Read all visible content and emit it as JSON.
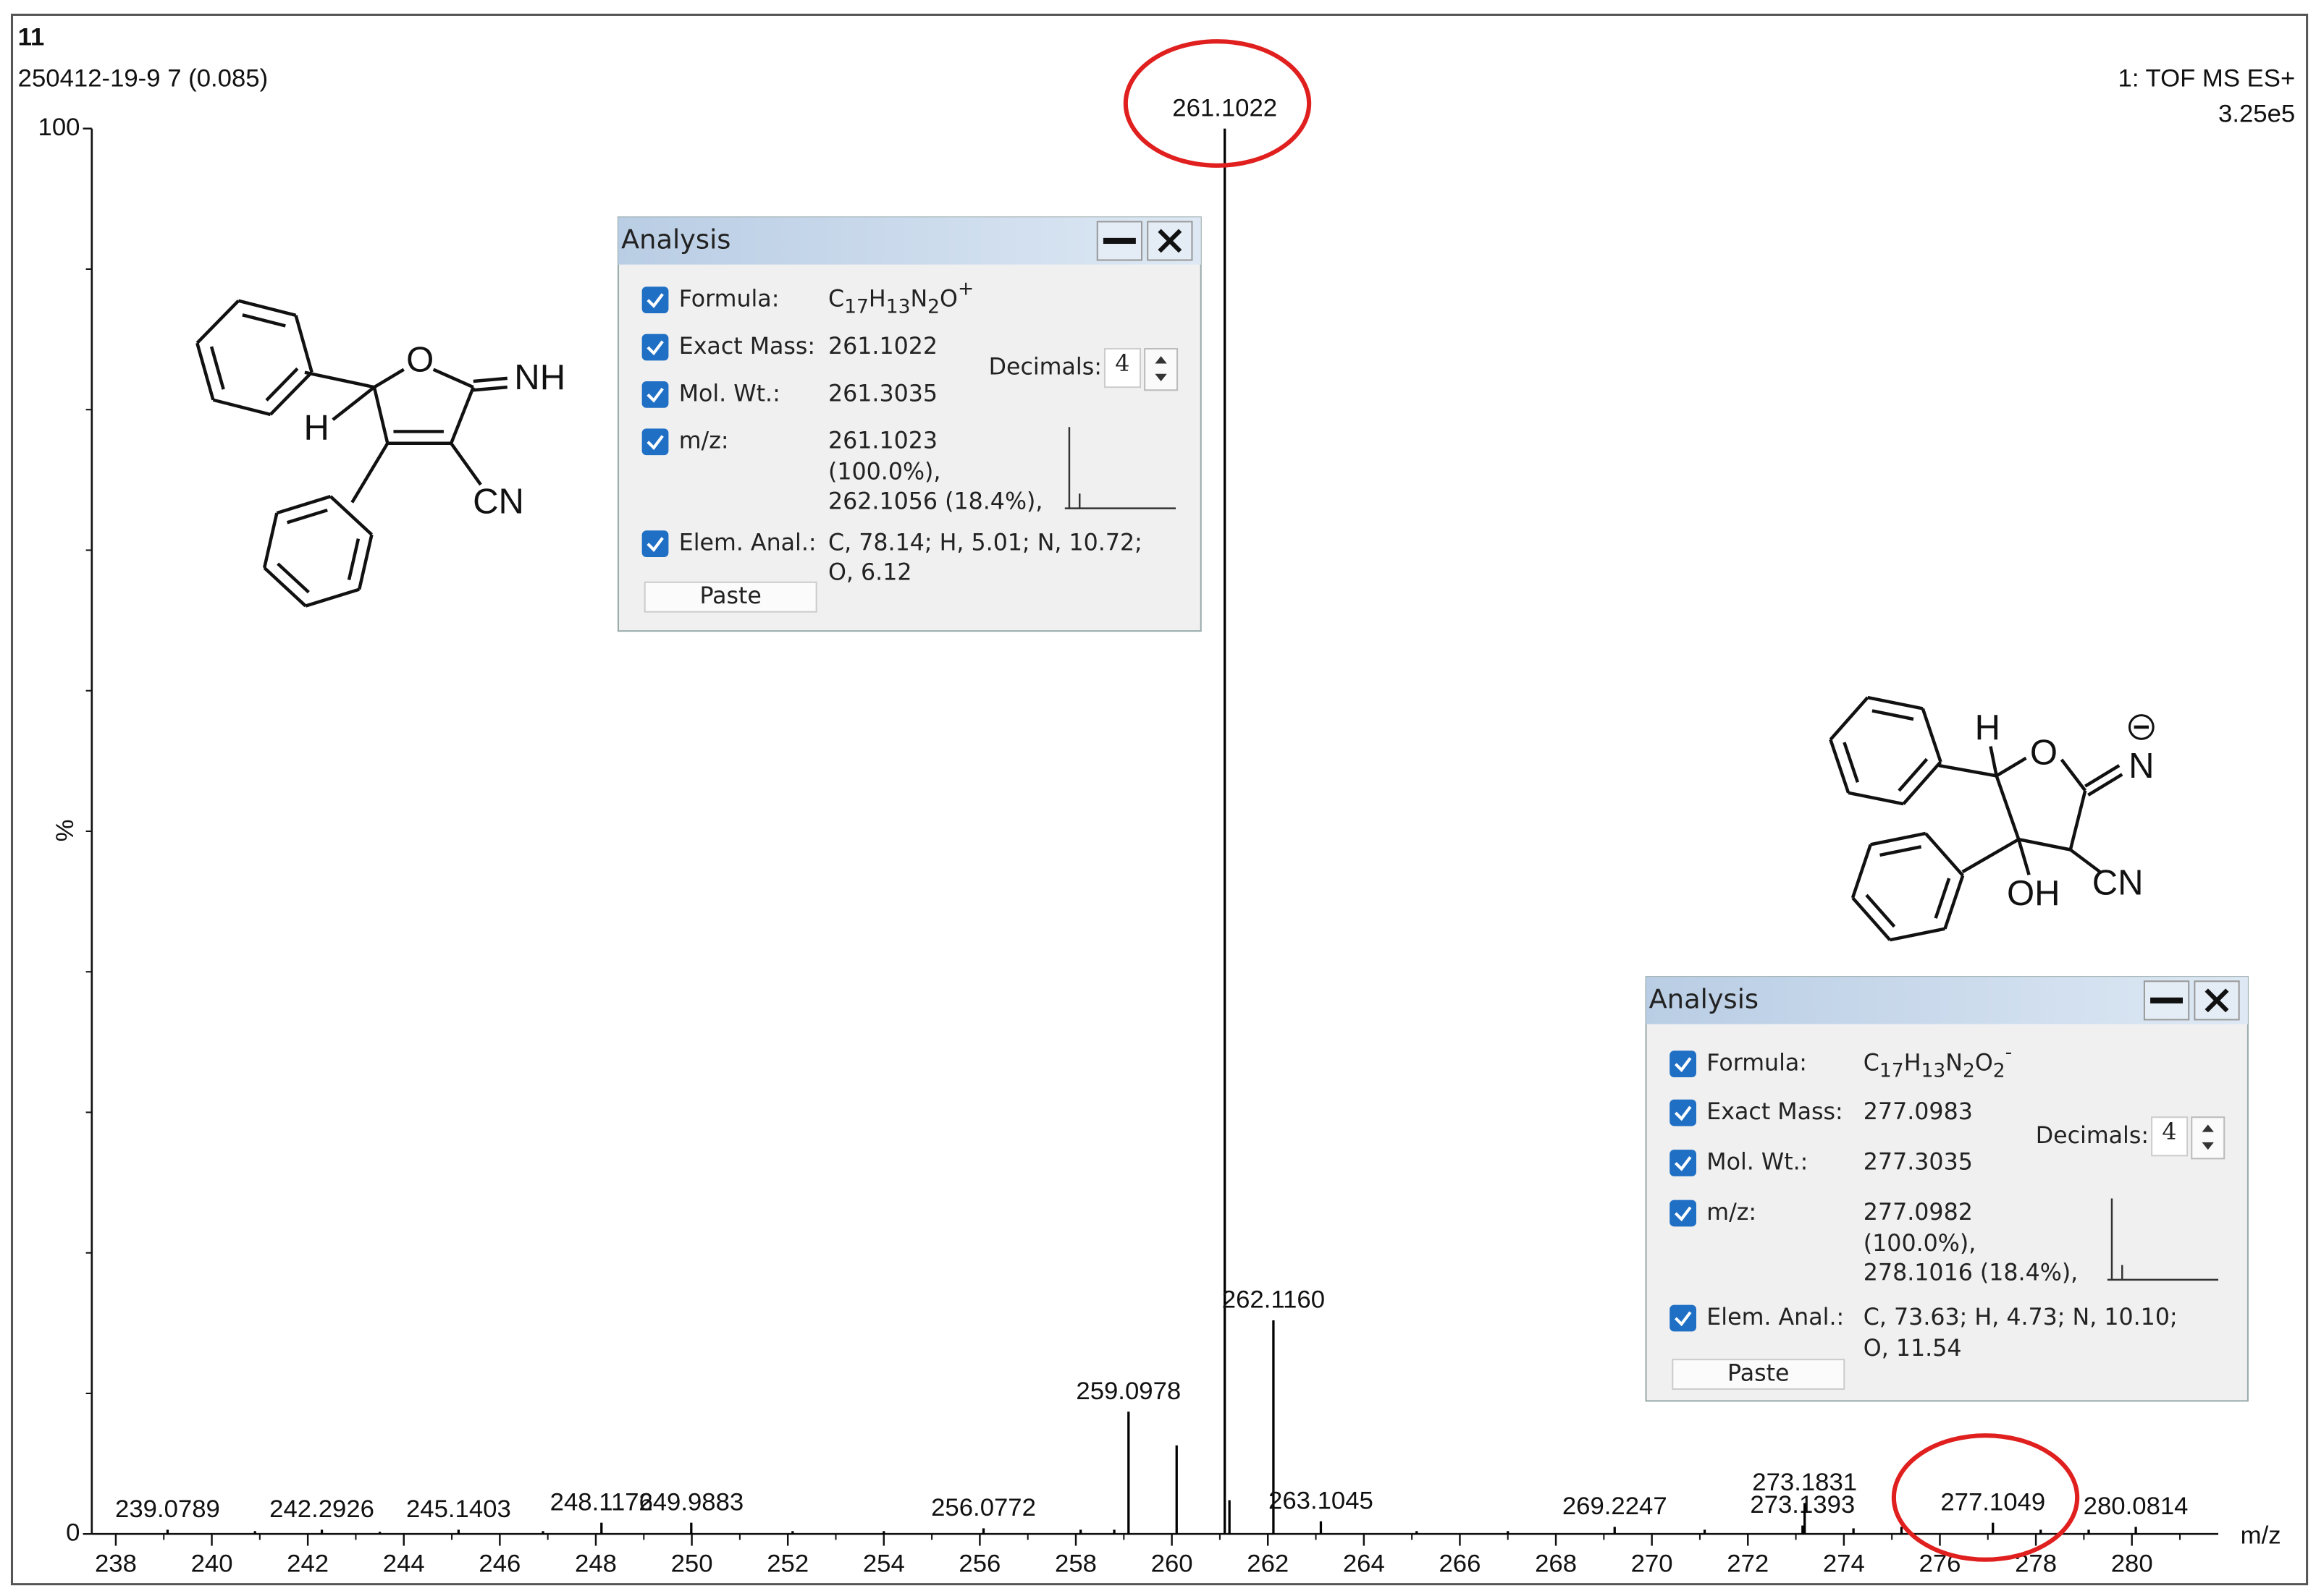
{
  "chart_data": {
    "type": "bar",
    "title": "11",
    "subtitle": "250412-19-9 7 (0.085)",
    "scan_info": "1: TOF MS ES+",
    "intensity": "3.25e5",
    "x_label": "m/z",
    "y_label": "%",
    "xlim": [
      237.5,
      281.8
    ],
    "xticks": [
      238,
      240,
      242,
      244,
      246,
      248,
      250,
      252,
      254,
      256,
      258,
      260,
      262,
      264,
      266,
      268,
      270,
      272,
      274,
      276,
      278,
      280
    ],
    "xminorticks": [
      239,
      241,
      243,
      245,
      247,
      249,
      251,
      253,
      255,
      257,
      259,
      261,
      263,
      265,
      267,
      269,
      271,
      273,
      275,
      277,
      279,
      281
    ],
    "ylim": [
      0,
      100
    ],
    "yticks": [
      0,
      100
    ],
    "yminorticks": [
      10,
      20,
      30,
      40,
      50,
      60,
      70,
      80,
      90
    ],
    "color": "#000000",
    "highlight_color": "#e0201f",
    "x": [
      239.0789,
      240.9,
      242.2926,
      243.5,
      245.1403,
      246.9,
      248.1176,
      249.9883,
      252.1,
      254.0,
      256.0772,
      258.1,
      258.8,
      259.0978,
      260.1,
      261.1022,
      261.2,
      262.116,
      263.1045,
      265.1,
      267.0,
      269.2247,
      271.1,
      273.1393,
      273.1831,
      274.2,
      275.2,
      277.1049,
      278.1,
      279.1,
      280.0814
    ],
    "values": [
      0.3,
      0.2,
      0.3,
      0.15,
      0.3,
      0.2,
      0.8,
      0.8,
      0.2,
      0.2,
      0.4,
      0.3,
      0.3,
      8.7,
      6.3,
      100,
      2.4,
      15.2,
      0.9,
      0.2,
      0.2,
      0.5,
      0.3,
      0.6,
      2.2,
      0.4,
      0.5,
      0.8,
      0.3,
      0.3,
      0.5
    ],
    "peak_labels": [
      "239.0789",
      null,
      "242.2926",
      null,
      "245.1403",
      null,
      "248.1176",
      "249.9883",
      null,
      null,
      "256.0772",
      null,
      null,
      "259.0978",
      null,
      "261.1022",
      null,
      "262.1160",
      "263.1045",
      null,
      null,
      "269.2247",
      null,
      "273.1393",
      "273.1831",
      null,
      null,
      "277.1049",
      null,
      null,
      "280.0814"
    ],
    "highlighted": [
      false,
      false,
      false,
      false,
      false,
      false,
      false,
      false,
      false,
      false,
      false,
      false,
      false,
      false,
      false,
      true,
      false,
      false,
      false,
      false,
      false,
      false,
      false,
      false,
      false,
      false,
      false,
      true,
      false,
      false,
      false
    ]
  },
  "structures": [
    {
      "atoms": [
        "O",
        "NH",
        "H",
        "CN"
      ]
    },
    {
      "atoms": [
        "H",
        "O",
        "N",
        "OH",
        "CN"
      ]
    }
  ],
  "panels": [
    {
      "title": "Analysis",
      "formula_label": "Formula:",
      "formula": [
        "C",
        "17",
        "H",
        "13",
        "N",
        "2",
        "O",
        "+"
      ],
      "exact_mass_label": "Exact Mass:",
      "exact_mass": "261.1022",
      "mol_wt_label": "Mol. Wt.:",
      "mol_wt": "261.3035",
      "mz_label": "m/z:",
      "mz": [
        "261.1023",
        "(100.0%),",
        "262.1056 (18.4%),"
      ],
      "elem_label": "Elem. Anal.:",
      "elem": [
        "C, 78.14; H, 5.01; N, 10.72;",
        "O, 6.12"
      ],
      "decimals_label": "Decimals:",
      "decimals": 4,
      "paste": "Paste"
    },
    {
      "title": "Analysis",
      "formula_label": "Formula:",
      "formula": [
        "C",
        "17",
        "H",
        "13",
        "N",
        "2",
        "O",
        "2",
        "-"
      ],
      "exact_mass_label": "Exact Mass:",
      "exact_mass": "277.0983",
      "mol_wt_label": "Mol. Wt.:",
      "mol_wt": "277.3035",
      "mz_label": "m/z:",
      "mz": [
        "277.0982",
        "(100.0%),",
        "278.1016 (18.4%),"
      ],
      "elem_label": "Elem. Anal.:",
      "elem": [
        "C, 73.63; H, 4.73; N, 10.10;",
        "O, 11.54"
      ],
      "decimals_label": "Decimals:",
      "decimals": 4,
      "paste": "Paste"
    }
  ]
}
